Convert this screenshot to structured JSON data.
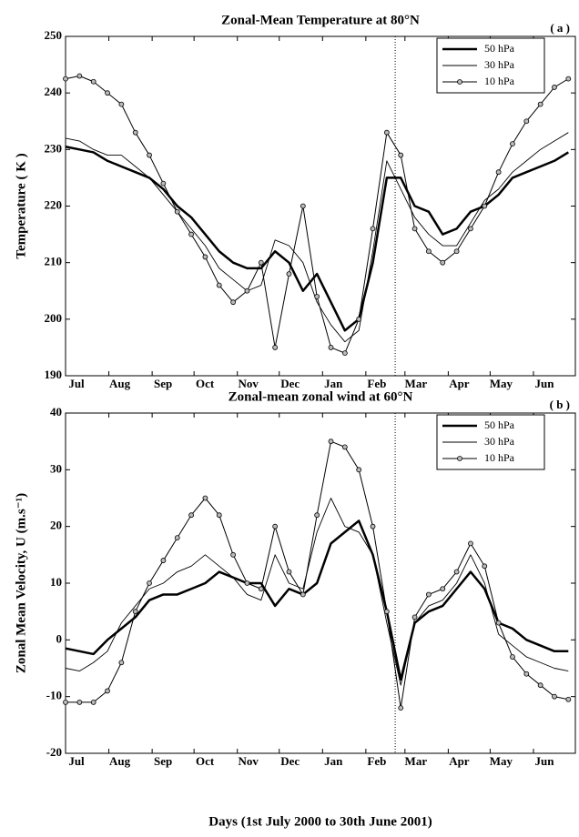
{
  "chart_data": [
    {
      "type": "line",
      "title": "Zonal-Mean Temperature at 80°N",
      "panel_label": "( a )",
      "ylabel": "Temperature  ( K )",
      "x": [
        0,
        10,
        20,
        30,
        40,
        50,
        60,
        70,
        80,
        90,
        100,
        110,
        120,
        130,
        140,
        150,
        160,
        170,
        180,
        190,
        200,
        210,
        220,
        230,
        240,
        250,
        260,
        270,
        280,
        290,
        300,
        310,
        320,
        330,
        340,
        350,
        360
      ],
      "xlim": [
        0,
        365
      ],
      "xticks": [
        {
          "value": 0,
          "label": "Jul"
        },
        {
          "value": 31,
          "label": "Aug"
        },
        {
          "value": 62,
          "label": "Sep"
        },
        {
          "value": 92,
          "label": "Oct"
        },
        {
          "value": 123,
          "label": "Nov"
        },
        {
          "value": 153,
          "label": "Dec"
        },
        {
          "value": 184,
          "label": "Jan"
        },
        {
          "value": 215,
          "label": "Feb"
        },
        {
          "value": 243,
          "label": "Mar"
        },
        {
          "value": 274,
          "label": "Apr"
        },
        {
          "value": 304,
          "label": "May"
        },
        {
          "value": 335,
          "label": "Jun"
        }
      ],
      "ylim": [
        190,
        250
      ],
      "yticks": [
        190,
        200,
        210,
        220,
        230,
        240,
        250
      ],
      "vline": 236,
      "legend": "upper right",
      "series": [
        {
          "name": "50 hPa",
          "color": "#000000",
          "linewidth": 2.5,
          "marker": "none",
          "values": [
            230.5,
            230,
            229.5,
            228,
            227,
            226,
            225,
            223,
            220,
            218,
            215,
            212,
            210,
            209,
            209,
            212,
            210,
            205,
            208,
            203,
            198,
            200,
            210,
            225,
            225,
            220,
            219,
            215,
            216,
            219,
            220,
            222,
            225,
            226,
            227,
            228,
            229.5
          ]
        },
        {
          "name": "30 hPa",
          "color": "#000000",
          "linewidth": 0.9,
          "marker": "none",
          "values": [
            232,
            231.5,
            230,
            229,
            229,
            227,
            225,
            222,
            219,
            216,
            213,
            209,
            207,
            205,
            206,
            214,
            213,
            210,
            203,
            199,
            196,
            198,
            212,
            228,
            223,
            218,
            215,
            213,
            213,
            217,
            221,
            223,
            226,
            228,
            230,
            231.5,
            233
          ]
        },
        {
          "name": "10 hPa",
          "color": "#000000",
          "linewidth": 1,
          "marker": "o",
          "values": [
            242.5,
            243,
            242,
            240,
            238,
            233,
            229,
            224,
            219,
            215,
            211,
            206,
            203,
            205,
            210,
            195,
            208,
            220,
            204,
            195,
            194,
            200,
            216,
            233,
            229,
            216,
            212,
            210,
            212,
            216,
            220,
            226,
            231,
            235,
            238,
            241,
            242.5
          ]
        }
      ]
    },
    {
      "type": "line",
      "title": "Zonal-mean zonal wind at 60°N",
      "panel_label": "( b )",
      "ylabel": "Zonal Mean Velocity,  U (m.s⁻¹)",
      "xlabel": "Days (1st July 2000 to 30th June 2001)",
      "x": [
        0,
        10,
        20,
        30,
        40,
        50,
        60,
        70,
        80,
        90,
        100,
        110,
        120,
        130,
        140,
        150,
        160,
        170,
        180,
        190,
        200,
        210,
        220,
        230,
        240,
        250,
        260,
        270,
        280,
        290,
        300,
        310,
        320,
        330,
        340,
        350,
        360
      ],
      "xlim": [
        0,
        365
      ],
      "xticks": [
        {
          "value": 0,
          "label": "Jul"
        },
        {
          "value": 31,
          "label": "Aug"
        },
        {
          "value": 62,
          "label": "Sep"
        },
        {
          "value": 92,
          "label": "Oct"
        },
        {
          "value": 123,
          "label": "Nov"
        },
        {
          "value": 153,
          "label": "Dec"
        },
        {
          "value": 184,
          "label": "Jan"
        },
        {
          "value": 215,
          "label": "Feb"
        },
        {
          "value": 243,
          "label": "Mar"
        },
        {
          "value": 274,
          "label": "Apr"
        },
        {
          "value": 304,
          "label": "May"
        },
        {
          "value": 335,
          "label": "Jun"
        }
      ],
      "ylim": [
        -20,
        40
      ],
      "yticks": [
        -20,
        -10,
        0,
        10,
        20,
        30,
        40
      ],
      "vline": 236,
      "legend": "upper right",
      "series": [
        {
          "name": "50 hPa",
          "color": "#000000",
          "linewidth": 2.5,
          "marker": "none",
          "values": [
            -1.5,
            -2,
            -2.5,
            0,
            2,
            4,
            7,
            8,
            8,
            9,
            10,
            12,
            11,
            10,
            10,
            6,
            9,
            8,
            10,
            17,
            19,
            21,
            15,
            5,
            -7,
            3,
            5,
            6,
            9,
            12,
            9,
            3,
            2,
            0,
            -1,
            -2,
            -2
          ]
        },
        {
          "name": "30 hPa",
          "color": "#000000",
          "linewidth": 0.9,
          "marker": "none",
          "values": [
            -5,
            -5.5,
            -4,
            -2,
            3,
            6,
            9,
            10,
            12,
            13,
            15,
            13,
            11,
            8,
            7,
            15,
            10,
            9,
            19,
            25,
            20,
            19,
            15,
            3,
            -8,
            3,
            6,
            7,
            10,
            15,
            10,
            1,
            -1,
            -3,
            -4,
            -5,
            -5.5
          ]
        },
        {
          "name": "10 hPa",
          "color": "#000000",
          "linewidth": 1,
          "marker": "o",
          "values": [
            -11,
            -11,
            -11,
            -9,
            -4,
            5,
            10,
            14,
            18,
            22,
            25,
            22,
            15,
            10,
            9,
            20,
            12,
            8,
            22,
            35,
            34,
            30,
            20,
            5,
            -12,
            4,
            8,
            9,
            12,
            17,
            13,
            3,
            -3,
            -6,
            -8,
            -10,
            -10.5
          ]
        }
      ]
    }
  ]
}
